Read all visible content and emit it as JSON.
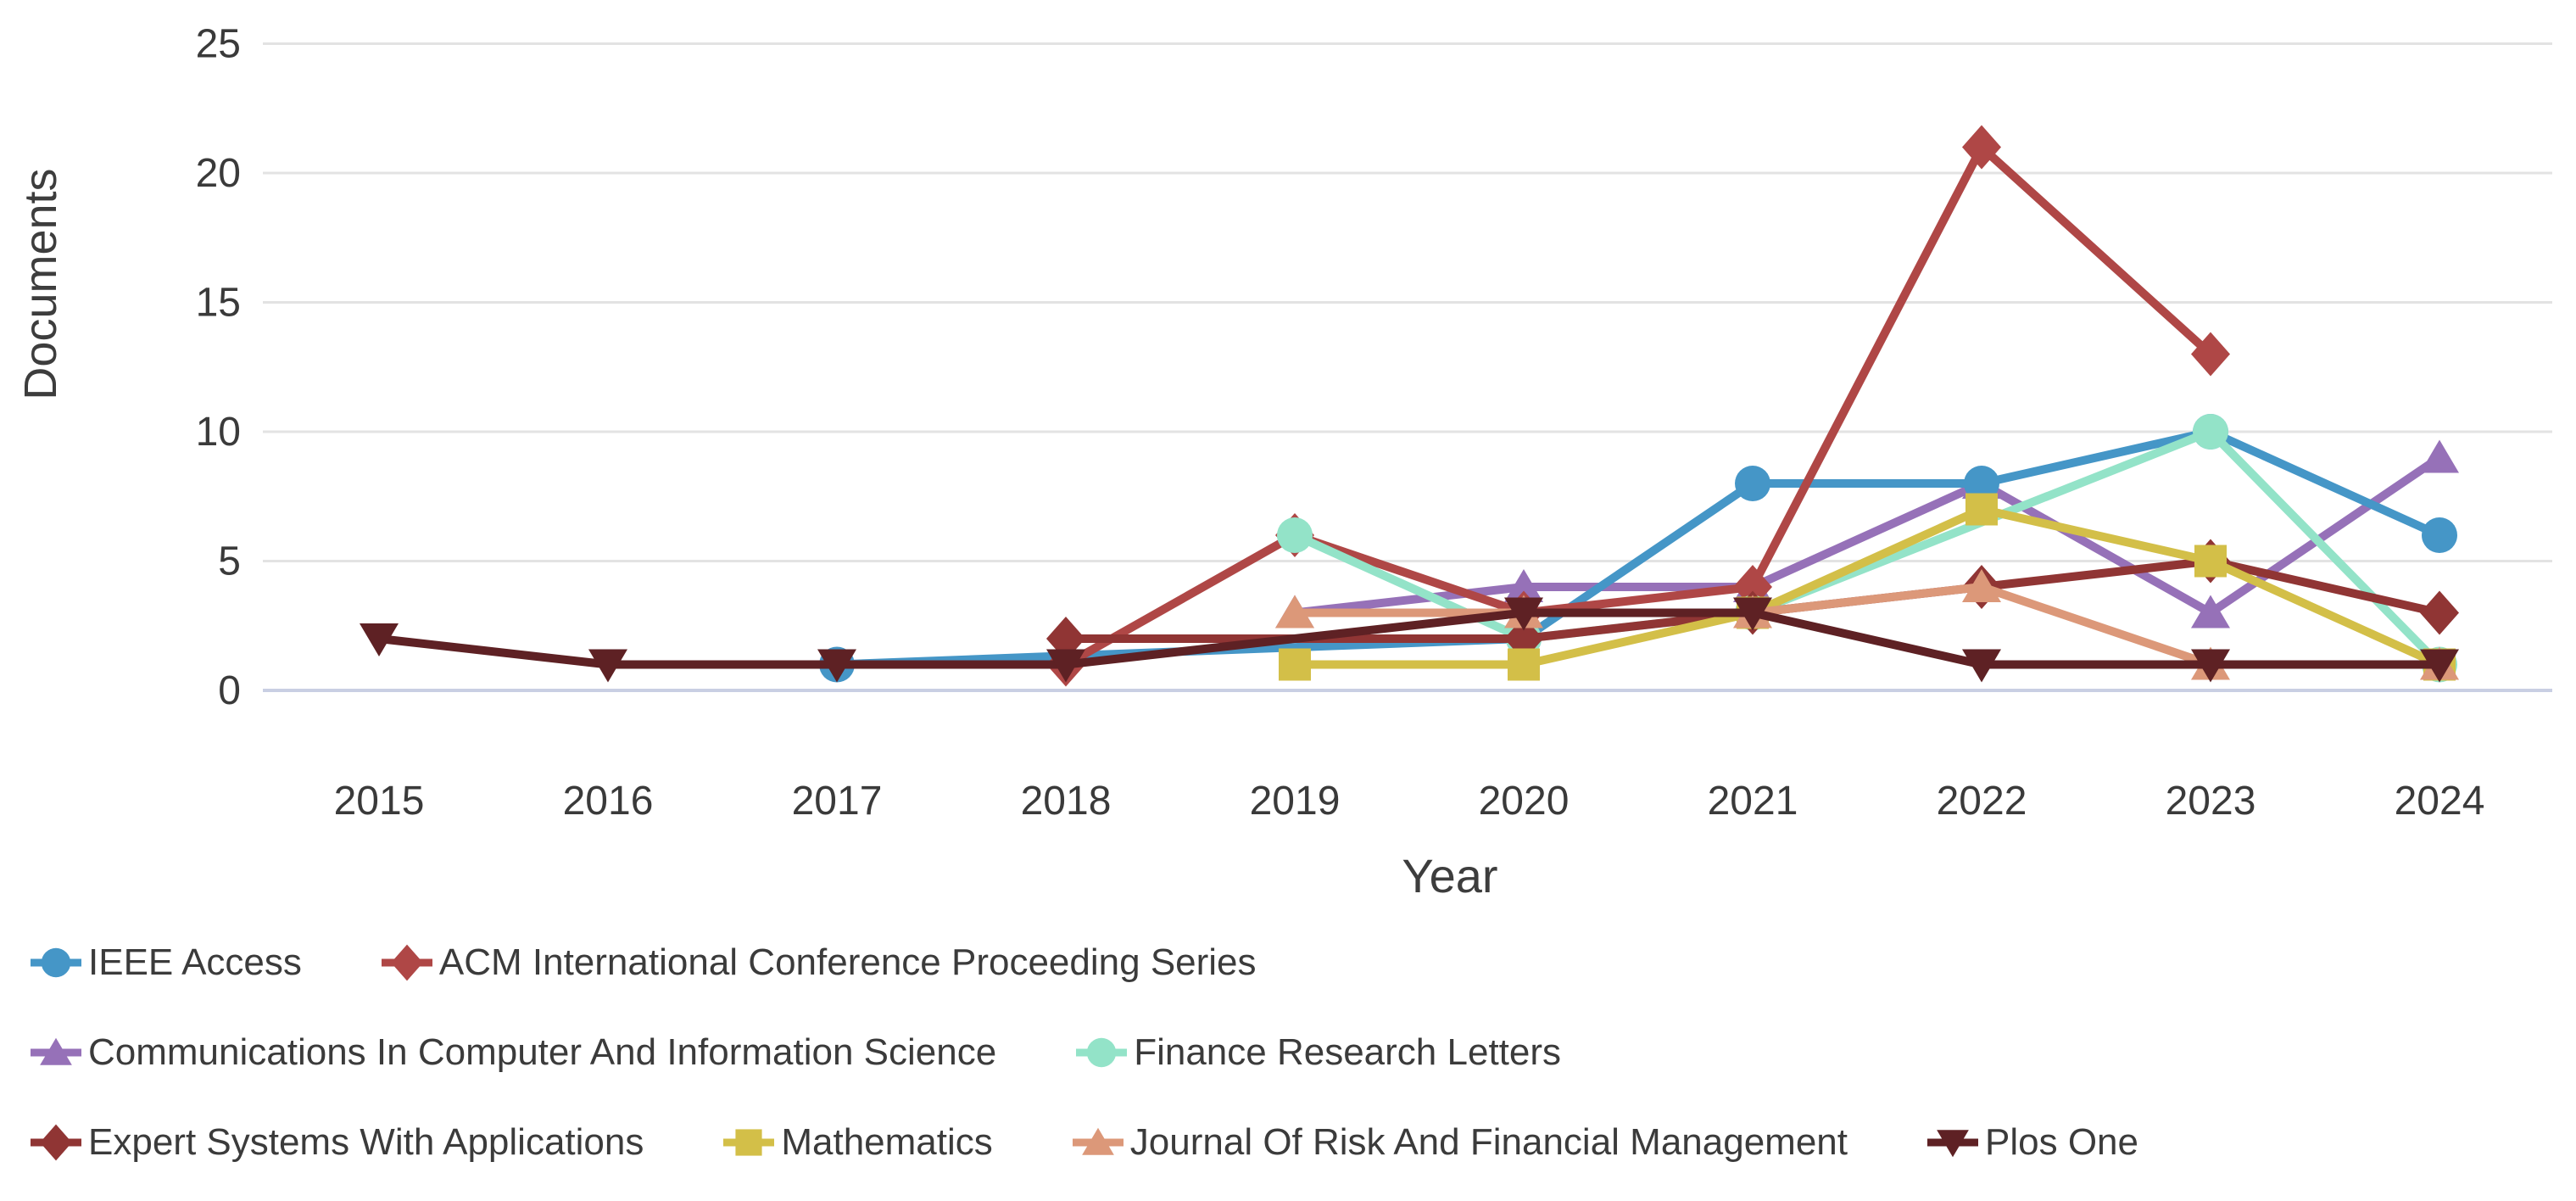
{
  "chart_data": {
    "type": "line",
    "title": "",
    "xlabel": "Year",
    "ylabel": "Documents",
    "x_categories": [
      2015,
      2016,
      2017,
      2018,
      2019,
      2020,
      2021,
      2022,
      2023,
      2024
    ],
    "ylim": [
      0,
      25
    ],
    "yticks": [
      0,
      5,
      10,
      15,
      20,
      25
    ],
    "grid": true,
    "legend_position": "bottom-left",
    "series": [
      {
        "name": "IEEE Access",
        "color": "#4596C7",
        "marker": "circle",
        "points": [
          [
            2017,
            1
          ],
          [
            2020,
            2
          ],
          [
            2021,
            8
          ],
          [
            2022,
            8
          ],
          [
            2023,
            10
          ],
          [
            2024,
            6
          ]
        ]
      },
      {
        "name": "ACM International Conference Proceeding Series",
        "color": "#AF4746",
        "marker": "diamond",
        "points": [
          [
            2018,
            1
          ],
          [
            2019,
            6
          ],
          [
            2020,
            3
          ],
          [
            2021,
            4
          ],
          [
            2022,
            21
          ],
          [
            2023,
            13
          ]
        ]
      },
      {
        "name": "Communications In Computer And Information Science",
        "color": "#9671B8",
        "marker": "triangle-up",
        "points": [
          [
            2019,
            3
          ],
          [
            2020,
            4
          ],
          [
            2021,
            4
          ],
          [
            2022,
            8
          ],
          [
            2023,
            3
          ],
          [
            2024,
            9
          ]
        ]
      },
      {
        "name": "Finance Research Letters",
        "color": "#93E3C8",
        "marker": "circle",
        "points": [
          [
            2019,
            6
          ],
          [
            2020,
            2
          ],
          [
            2021,
            3
          ],
          [
            2023,
            10
          ],
          [
            2024,
            1
          ]
        ]
      },
      {
        "name": "Expert Systems With Applications",
        "color": "#903534",
        "marker": "diamond",
        "points": [
          [
            2018,
            2
          ],
          [
            2020,
            2
          ],
          [
            2021,
            3
          ],
          [
            2022,
            4
          ],
          [
            2023,
            5
          ],
          [
            2024,
            3
          ]
        ]
      },
      {
        "name": "Mathematics",
        "color": "#D3BF48",
        "marker": "square",
        "points": [
          [
            2019,
            1
          ],
          [
            2020,
            1
          ],
          [
            2021,
            3
          ],
          [
            2022,
            7
          ],
          [
            2023,
            5
          ],
          [
            2024,
            1
          ]
        ]
      },
      {
        "name": "Journal Of Risk And Financial Management",
        "color": "#DC9879",
        "marker": "triangle-up",
        "points": [
          [
            2019,
            3
          ],
          [
            2020,
            3
          ],
          [
            2021,
            3
          ],
          [
            2022,
            4
          ],
          [
            2023,
            1
          ],
          [
            2024,
            1
          ]
        ]
      },
      {
        "name": "Plos One",
        "color": "#5E2124",
        "marker": "triangle-down",
        "points": [
          [
            2015,
            2
          ],
          [
            2016,
            1
          ],
          [
            2017,
            1
          ],
          [
            2018,
            1
          ],
          [
            2020,
            3
          ],
          [
            2021,
            3
          ],
          [
            2022,
            1
          ],
          [
            2023,
            1
          ],
          [
            2024,
            1
          ]
        ]
      }
    ],
    "draw_order": [
      2,
      0,
      1,
      3,
      4,
      5,
      6,
      7
    ],
    "legend_rows": [
      [
        0,
        1
      ],
      [
        2,
        3
      ],
      [
        4,
        5,
        6,
        7
      ]
    ],
    "layout": {
      "grid_color": "#e3e3e3",
      "zero_line_color": "#c9cfe3",
      "text_color": "#3a3a3a",
      "background": "#ffffff"
    }
  }
}
